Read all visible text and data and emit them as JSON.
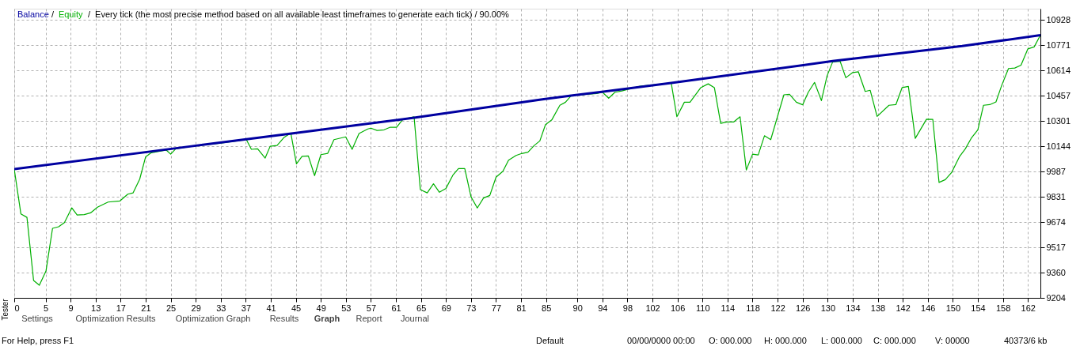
{
  "chart_data": {
    "type": "line",
    "title": "Every tick (the most precise method based on all available least timeframes to generate each tick) / 90.00%",
    "xlim": [
      0,
      164
    ],
    "ylim": [
      9204,
      10997
    ],
    "xticks": [
      0,
      5,
      9,
      13,
      17,
      21,
      25,
      29,
      33,
      37,
      41,
      45,
      49,
      53,
      57,
      61,
      65,
      69,
      73,
      77,
      81,
      85,
      90,
      94,
      98,
      102,
      106,
      110,
      114,
      118,
      122,
      126,
      130,
      134,
      138,
      142,
      146,
      150,
      154,
      158,
      162
    ],
    "yticks": [
      9204,
      9360,
      9517,
      9674,
      9831,
      9987,
      10144,
      10301,
      10457,
      10614,
      10771,
      10928
    ],
    "grid": true,
    "legend": "top left",
    "line_style": "solid",
    "series": [
      {
        "name": "Balance",
        "color": "#0000a0",
        "x": [
          0,
          28.3,
          44.3,
          63.9,
          84.4,
          89,
          105,
          130.8,
          151.5,
          164
        ],
        "values": [
          10002,
          10144,
          10223,
          10321,
          10435,
          10458,
          10536,
          10672,
          10765,
          10833
        ]
      },
      {
        "name": "Equity",
        "color": "#00b000",
        "x": [
          0,
          1.06,
          2.03,
          3.09,
          4.01,
          5.07,
          6.12,
          7.09,
          8.02,
          9.2,
          10.05,
          11.19,
          12.2,
          13.3,
          14.99,
          16.9,
          18.15,
          19.0,
          20.05,
          21.0,
          21.9,
          24.3,
          25.0,
          25.8,
          28.3,
          33,
          37.1,
          37.9,
          38.9,
          40.1,
          40.9,
          42.0,
          43.1,
          44.2,
          45.1,
          46.0,
          47.0,
          48.0,
          49.0,
          50.1,
          51.1,
          52.97,
          54.0,
          55.1,
          56.5,
          57.0,
          58.0,
          59.1,
          60.1,
          61.1,
          62.1,
          63.9,
          64.9,
          66.0,
          67.0,
          67.95,
          69.0,
          70.1,
          71.0,
          72.0,
          73.0,
          74.0,
          75.0,
          76.0,
          77.0,
          78.1,
          79.0,
          80.2,
          81.1,
          82.1,
          83.1,
          84.0,
          84.9,
          85.9,
          87.2,
          88.1,
          89.0,
          93.1,
          94.0,
          95.0,
          96.0,
          97.1,
          100.0,
          105.0,
          105.9,
          107.1,
          108.0,
          109.7,
          110.9,
          111.9,
          112.9,
          113.9,
          115.0,
          116.0,
          117.0,
          118.0,
          118.9,
          119.9,
          120.9,
          123.0,
          123.9,
          125.0,
          126.0,
          126.9,
          127.9,
          129.0,
          129.9,
          130.8,
          132.0,
          132.9,
          134.0,
          134.9,
          136.0,
          136.8,
          137.9,
          139.8,
          140.9,
          141.9,
          142.9,
          144.0,
          145.8,
          146.8,
          147.8,
          148.8,
          149.8,
          151.1,
          152.0,
          153.0,
          154.0,
          154.9,
          155.9,
          156.9,
          157.8,
          158.9,
          159.9,
          160.9,
          162.0,
          163.0,
          164.0
        ],
        "values": [
          10002,
          9725,
          9703,
          9312,
          9282,
          9370,
          9635,
          9645,
          9671,
          9762,
          9718,
          9720,
          9731,
          9766,
          9798,
          9805,
          9847,
          9855,
          9940,
          10079,
          10104,
          10120,
          10095,
          10128,
          10144,
          10163,
          10185,
          10125,
          10128,
          10071,
          10144,
          10149,
          10198,
          10226,
          10035,
          10082,
          10084,
          9962,
          10092,
          10100,
          10185,
          10202,
          10125,
          10223,
          10251,
          10256,
          10242,
          10246,
          10262,
          10262,
          10311,
          10327,
          9875,
          9855,
          9911,
          9859,
          9883,
          9965,
          10006,
          10006,
          9831,
          9761,
          9823,
          9839,
          9952,
          9989,
          10058,
          10087,
          10099,
          10107,
          10149,
          10177,
          10278,
          10307,
          10398,
          10417,
          10458,
          10471,
          10479,
          10442,
          10479,
          10487,
          10517,
          10536,
          10327,
          10417,
          10417,
          10507,
          10531,
          10507,
          10286,
          10295,
          10295,
          10327,
          9997,
          10095,
          10090,
          10209,
          10185,
          10463,
          10466,
          10417,
          10401,
          10479,
          10540,
          10427,
          10580,
          10667,
          10670,
          10569,
          10601,
          10606,
          10484,
          10491,
          10329,
          10398,
          10402,
          10508,
          10515,
          10193,
          10312,
          10311,
          9920,
          9937,
          9981,
          10082,
          10128,
          10197,
          10246,
          10398,
          10402,
          10419,
          10520,
          10626,
          10629,
          10647,
          10748,
          10760,
          10833
        ]
      }
    ],
    "annotations": [
      "/",
      "/",
      "Settings",
      "Optimization Results",
      "Optimization Graph",
      "Results",
      "Graph",
      "Report",
      "Journal",
      "Tester",
      "For Help, press F1",
      "Default",
      "00/00/0000 00:00",
      "O: 000.000",
      "H: 000.000",
      "L: 000.000",
      "C: 000.000",
      "V: 00000",
      "40373/6 kb"
    ]
  }
}
